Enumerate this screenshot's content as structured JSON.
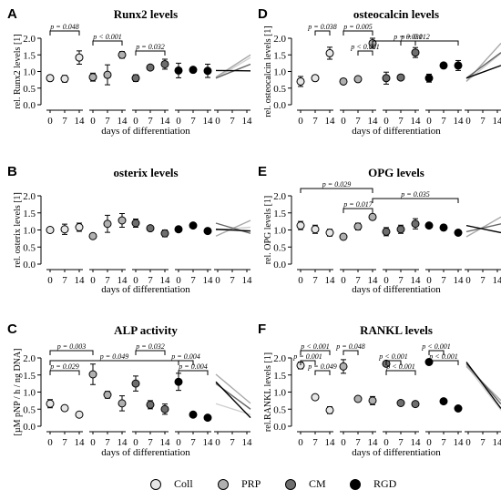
{
  "xlabel": "days of differentiation",
  "groups": [
    "Coll",
    "PRP",
    "CM",
    "RGD"
  ],
  "days": [
    "0",
    "7",
    "14"
  ],
  "group_colors": {
    "Coll": "#e6e6e6",
    "PRP": "#b0b0b0",
    "CM": "#6e6e6e",
    "RGD": "#000000"
  },
  "chart_data": [
    {
      "panel": "A",
      "title": "Runx2 levels",
      "type": "scatter",
      "ylabel": "rel. Runx2 levels [1]",
      "ylim": [
        0,
        2.0
      ],
      "yticks": [
        "0.0",
        "0.5",
        "1.0",
        "1.5",
        "2.0"
      ],
      "series": [
        {
          "name": "Coll",
          "mean": [
            0.8,
            0.78,
            1.42
          ],
          "err": [
            0.08,
            0.1,
            0.2
          ]
        },
        {
          "name": "PRP",
          "mean": [
            0.83,
            0.9,
            1.5
          ],
          "err": [
            0.12,
            0.3,
            0.1
          ]
        },
        {
          "name": "CM",
          "mean": [
            0.8,
            1.12,
            1.22
          ],
          "err": [
            0.1,
            0.04,
            0.15
          ]
        },
        {
          "name": "RGD",
          "mean": [
            1.03,
            1.05,
            1.02
          ],
          "err": [
            0.22,
            0.02,
            0.2
          ]
        }
      ],
      "significance": [
        {
          "text": "p = 0.048",
          "group": "Coll",
          "from": 0,
          "to": 2
        },
        {
          "text": "p < 0.001",
          "group": "PRP",
          "from": 0,
          "to": 2
        },
        {
          "text": "p = 0.032",
          "group": "CM",
          "from": 0,
          "to": 2
        }
      ],
      "slopes": [
        {
          "name": "Coll",
          "start": 0.8,
          "end": 1.42
        },
        {
          "name": "PRP",
          "start": 0.83,
          "end": 1.5
        },
        {
          "name": "CM",
          "start": 0.8,
          "end": 1.22
        },
        {
          "name": "RGD",
          "start": 1.03,
          "end": 1.02
        }
      ]
    },
    {
      "panel": "B",
      "title": "osterix levels",
      "type": "scatter",
      "ylabel": "rel. osterix levels [1]",
      "ylim": [
        0,
        2.0
      ],
      "yticks": [
        "0.0",
        "0.5",
        "1.0",
        "1.5",
        "2.0"
      ],
      "series": [
        {
          "name": "Coll",
          "mean": [
            1.0,
            1.02,
            1.08
          ],
          "err": [
            0.08,
            0.15,
            0.12
          ]
        },
        {
          "name": "PRP",
          "mean": [
            0.82,
            1.18,
            1.28
          ],
          "err": [
            0.07,
            0.25,
            0.2
          ]
        },
        {
          "name": "CM",
          "mean": [
            1.2,
            1.05,
            0.9
          ],
          "err": [
            0.12,
            0.04,
            0.1
          ]
        },
        {
          "name": "RGD",
          "mean": [
            1.02,
            1.13,
            0.97
          ],
          "err": [
            0.05,
            0.03,
            0.08
          ]
        }
      ],
      "significance": [],
      "slopes": [
        {
          "name": "Coll",
          "start": 1.0,
          "end": 1.08
        },
        {
          "name": "PRP",
          "start": 0.82,
          "end": 1.28
        },
        {
          "name": "CM",
          "start": 1.2,
          "end": 0.9
        },
        {
          "name": "RGD",
          "start": 1.02,
          "end": 0.97
        }
      ]
    },
    {
      "panel": "C",
      "title": "ALP activity",
      "type": "scatter",
      "ylabel": "[µM pNP / h / ng DNA]",
      "ylim": [
        0,
        2.0
      ],
      "yticks": [
        "0.0",
        "0.5",
        "1.0",
        "1.5",
        "2.0"
      ],
      "series": [
        {
          "name": "Coll",
          "mean": [
            0.66,
            0.53,
            0.34
          ],
          "err": [
            0.12,
            0.08,
            0.06
          ]
        },
        {
          "name": "PRP",
          "mean": [
            1.52,
            0.92,
            0.67
          ],
          "err": [
            0.3,
            0.1,
            0.22
          ]
        },
        {
          "name": "CM",
          "mean": [
            1.25,
            0.63,
            0.5
          ],
          "err": [
            0.22,
            0.12,
            0.15
          ]
        },
        {
          "name": "RGD",
          "mean": [
            1.3,
            0.34,
            0.25
          ],
          "err": [
            0.25,
            0.06,
            0.05
          ]
        }
      ],
      "significance": [
        {
          "text": "p = 0.003",
          "group": "Coll",
          "from": 0,
          "to": "PRP0"
        },
        {
          "text": "p = 0.049",
          "group": "Coll",
          "from": 0,
          "to": "RGD0"
        },
        {
          "text": "p = 0.029",
          "group": "Coll",
          "from": 0,
          "to": 2
        },
        {
          "text": "p = 0.032",
          "group": "CM",
          "from": 0,
          "to": 2
        },
        {
          "text": "p = 0.004",
          "group": "RGD",
          "from": 0,
          "to": 1
        },
        {
          "text": "p = 0.004",
          "group": "RGD",
          "from": 0,
          "to": 2
        }
      ],
      "slopes": [
        {
          "name": "Coll",
          "start": 0.66,
          "end": 0.34
        },
        {
          "name": "PRP",
          "start": 1.52,
          "end": 0.67
        },
        {
          "name": "CM",
          "start": 1.25,
          "end": 0.5
        },
        {
          "name": "RGD",
          "start": 1.3,
          "end": 0.25
        }
      ]
    },
    {
      "panel": "D",
      "title": "osteocalcin levels",
      "type": "scatter",
      "ylabel": "rel. osteocalcin levels [1]",
      "ylim": [
        0,
        2.0
      ],
      "yticks": [
        "0.0",
        "0.5",
        "1.0",
        "1.5",
        "2.0"
      ],
      "series": [
        {
          "name": "Coll",
          "mean": [
            0.7,
            0.8,
            1.55
          ],
          "err": [
            0.15,
            0.08,
            0.18
          ]
        },
        {
          "name": "PRP",
          "mean": [
            0.7,
            0.77,
            1.85
          ],
          "err": [
            0.08,
            0.08,
            0.15
          ]
        },
        {
          "name": "CM",
          "mean": [
            0.8,
            0.82,
            1.57
          ],
          "err": [
            0.18,
            0.08,
            0.15
          ]
        },
        {
          "name": "RGD",
          "mean": [
            0.8,
            1.18,
            1.18
          ],
          "err": [
            0.12,
            0.08,
            0.15
          ]
        }
      ],
      "significance": [
        {
          "text": "p = 0.038",
          "group": "Coll",
          "from": 1,
          "to": 2
        },
        {
          "text": "p = 0.012",
          "group": "PRP",
          "from": 2,
          "to": "RGD2"
        },
        {
          "text": "p < 0.001",
          "group": "PRP",
          "from": 1,
          "to": 2
        },
        {
          "text": "p = 0.005",
          "group": "PRP",
          "from": 0,
          "to": 2
        },
        {
          "text": "p = 0.031",
          "group": "CM",
          "from": 1,
          "to": 2
        }
      ],
      "slopes": [
        {
          "name": "Coll",
          "start": 0.7,
          "end": 1.55
        },
        {
          "name": "PRP",
          "start": 0.7,
          "end": 1.85
        },
        {
          "name": "CM",
          "start": 0.8,
          "end": 1.57
        },
        {
          "name": "RGD",
          "start": 0.8,
          "end": 1.18
        }
      ]
    },
    {
      "panel": "E",
      "title": "OPG levels",
      "type": "scatter",
      "ylabel": "rel. OPG levels [1]",
      "ylim": [
        0,
        2.0
      ],
      "yticks": [
        "0.0",
        "0.5",
        "1.0",
        "1.5",
        "2.0"
      ],
      "series": [
        {
          "name": "Coll",
          "mean": [
            1.13,
            1.02,
            0.92
          ],
          "err": [
            0.12,
            0.12,
            0.1
          ]
        },
        {
          "name": "PRP",
          "mean": [
            0.8,
            1.1,
            1.38
          ],
          "err": [
            0.08,
            0.1,
            0.08
          ]
        },
        {
          "name": "CM",
          "mean": [
            0.95,
            1.02,
            1.18
          ],
          "err": [
            0.12,
            0.12,
            0.15
          ]
        },
        {
          "name": "RGD",
          "mean": [
            1.13,
            1.07,
            0.92
          ],
          "err": [
            0.05,
            0.08,
            0.04
          ]
        }
      ],
      "significance": [
        {
          "text": "p = 0.029",
          "group": "Coll",
          "from": 0,
          "to": "PRP2"
        },
        {
          "text": "p = 0.035",
          "group": "PRP",
          "from": 2,
          "to": "RGD2"
        },
        {
          "text": "p = 0.017",
          "group": "PRP",
          "from": 0,
          "to": 2
        }
      ],
      "slopes": [
        {
          "name": "Coll",
          "start": 1.13,
          "end": 0.92
        },
        {
          "name": "PRP",
          "start": 0.8,
          "end": 1.38
        },
        {
          "name": "CM",
          "start": 0.95,
          "end": 1.18
        },
        {
          "name": "RGD",
          "start": 1.13,
          "end": 0.92
        }
      ]
    },
    {
      "panel": "F",
      "title": "RANKL levels",
      "type": "scatter",
      "ylabel": "rel.RANKL levels [1]",
      "ylim": [
        0,
        2.0
      ],
      "yticks": [
        "0.0",
        "0.5",
        "1.0",
        "1.5",
        "2.0"
      ],
      "series": [
        {
          "name": "Coll",
          "mean": [
            1.78,
            0.85,
            0.47
          ],
          "err": [
            0.1,
            0.05,
            0.1
          ]
        },
        {
          "name": "PRP",
          "mean": [
            1.75,
            0.8,
            0.75
          ],
          "err": [
            0.2,
            0.08,
            0.12
          ]
        },
        {
          "name": "CM",
          "mean": [
            1.83,
            0.68,
            0.65
          ],
          "err": [
            0.06,
            0.04,
            0.03
          ]
        },
        {
          "name": "RGD",
          "mean": [
            1.88,
            0.73,
            0.52
          ],
          "err": [
            0.07,
            0.05,
            0.05
          ]
        }
      ],
      "significance": [
        {
          "text": "p < 0.001",
          "group": "Coll",
          "from": 0,
          "to": 2
        },
        {
          "text": "p = 0.001",
          "group": "Coll",
          "from": 0,
          "to": 1
        },
        {
          "text": "p = 0.049",
          "group": "Coll",
          "from": 1,
          "to": 2
        },
        {
          "text": "p = 0.048",
          "group": "PRP",
          "from": 0,
          "to": 1
        },
        {
          "text": "p < 0.001",
          "group": "CM",
          "from": 0,
          "to": 1
        },
        {
          "text": "p < 0.001",
          "group": "CM",
          "from": 0,
          "to": 2
        },
        {
          "text": "p < 0.001",
          "group": "RGD",
          "from": 0,
          "to": 1
        },
        {
          "text": "p < 0.001",
          "group": "RGD",
          "from": 0,
          "to": 2
        }
      ],
      "slopes": [
        {
          "name": "Coll",
          "start": 1.78,
          "end": 0.47
        },
        {
          "name": "PRP",
          "start": 1.75,
          "end": 0.75
        },
        {
          "name": "CM",
          "start": 1.83,
          "end": 0.65
        },
        {
          "name": "RGD",
          "start": 1.88,
          "end": 0.52
        }
      ]
    }
  ]
}
